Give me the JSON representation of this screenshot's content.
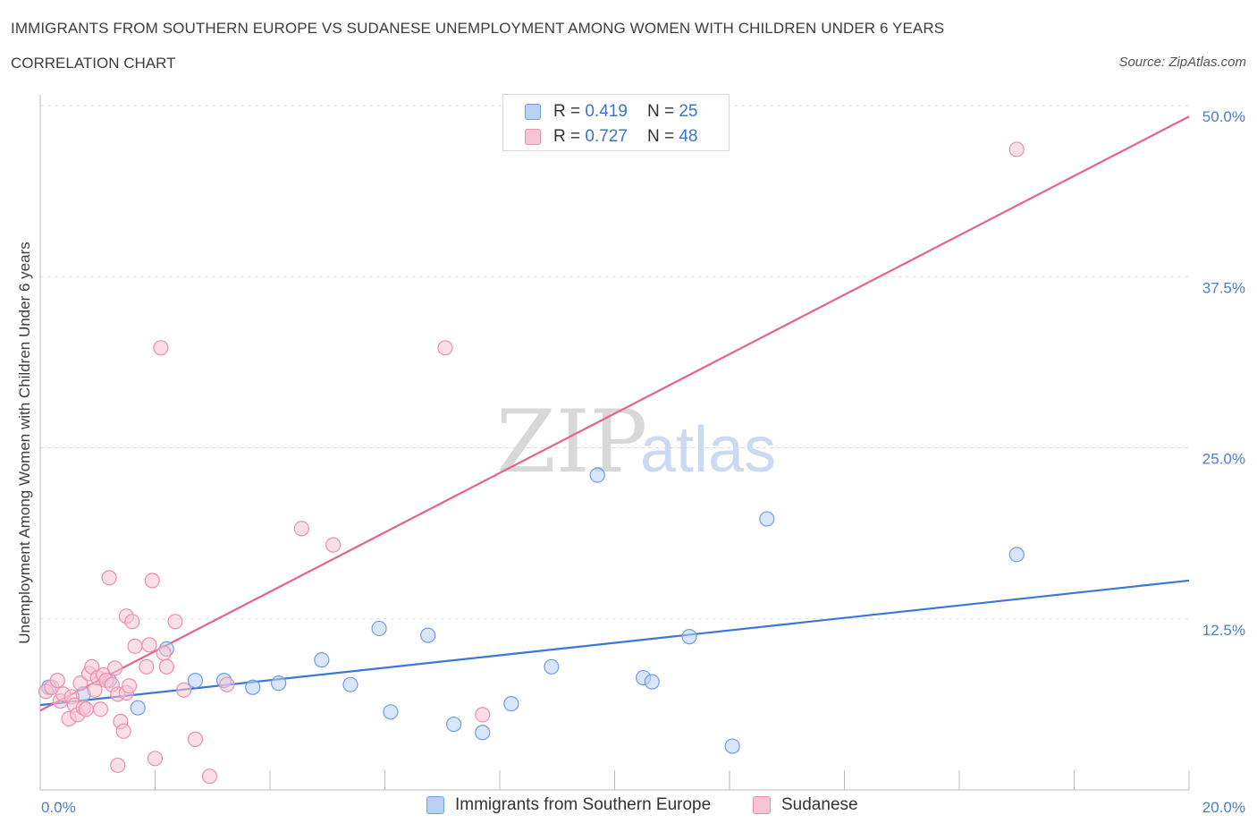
{
  "title": "IMMIGRANTS FROM SOUTHERN EUROPE VS SUDANESE UNEMPLOYMENT AMONG WOMEN WITH CHILDREN UNDER 6 YEARS",
  "subtitle": "CORRELATION CHART",
  "source": "Source: ZipAtlas.com",
  "watermark": {
    "zip": "ZIP",
    "atlas": "atlas"
  },
  "legend_top": [
    {
      "r_label": "R =",
      "r_value": "0.419",
      "n_label": "N =",
      "n_value": "25"
    },
    {
      "r_label": "R =",
      "r_value": "0.727",
      "n_label": "N =",
      "n_value": "48"
    }
  ],
  "legend_bottom": [
    "Immigrants from Southern Europe",
    "Sudanese"
  ],
  "colors": {
    "blue_fill": "#b9d1f5",
    "blue_stroke": "#6f9ee0",
    "blue_line": "#3b77d4",
    "pink_fill": "#f7c4d3",
    "pink_stroke": "#eb8fac",
    "pink_line": "#e5648e",
    "grid": "#dcdcdc",
    "axis_text": "#4a7fd1"
  },
  "chart_data": {
    "type": "scatter",
    "title": "IMMIGRANTS FROM SOUTHERN EUROPE VS SUDANESE UNEMPLOYMENT AMONG WOMEN WITH CHILDREN UNDER 6 YEARS",
    "xlabel": "",
    "ylabel": "Unemployment Among Women with Children Under 6 years",
    "xlim": [
      0,
      20
    ],
    "ylim": [
      0,
      50
    ],
    "x_tick_labels": [
      "0.0%",
      "20.0%"
    ],
    "y_tick_labels": [
      "12.5%",
      "25.0%",
      "37.5%",
      "50.0%"
    ],
    "y_tick_values": [
      12.5,
      25.0,
      37.5,
      50.0
    ],
    "grid": "horizontal dashed",
    "legend": "top-center and bottom",
    "series": [
      {
        "name": "Immigrants from Southern Europe",
        "color": "#b9d1f5",
        "points": [
          [
            0.15,
            7.5
          ],
          [
            0.75,
            7.0
          ],
          [
            1.2,
            8.0
          ],
          [
            1.7,
            6.0
          ],
          [
            2.2,
            10.3
          ],
          [
            2.7,
            8.0
          ],
          [
            3.2,
            8.0
          ],
          [
            3.7,
            7.5
          ],
          [
            4.15,
            7.8
          ],
          [
            4.9,
            9.5
          ],
          [
            5.4,
            7.7
          ],
          [
            5.9,
            11.8
          ],
          [
            6.1,
            5.7
          ],
          [
            6.75,
            11.3
          ],
          [
            7.2,
            4.8
          ],
          [
            7.7,
            4.2
          ],
          [
            8.2,
            6.3
          ],
          [
            8.9,
            9.0
          ],
          [
            9.7,
            23.0
          ],
          [
            10.5,
            8.2
          ],
          [
            10.65,
            7.9
          ],
          [
            11.3,
            11.2
          ],
          [
            12.05,
            3.2
          ],
          [
            12.65,
            19.8
          ],
          [
            17.0,
            17.2
          ]
        ],
        "trend": [
          [
            0,
            6.2
          ],
          [
            20,
            15.3
          ]
        ]
      },
      {
        "name": "Sudanese",
        "color": "#f7c4d3",
        "points": [
          [
            0.1,
            7.2
          ],
          [
            0.2,
            7.5
          ],
          [
            0.3,
            8.0
          ],
          [
            0.35,
            6.5
          ],
          [
            0.4,
            7.0
          ],
          [
            0.5,
            5.2
          ],
          [
            0.55,
            6.8
          ],
          [
            0.6,
            6.2
          ],
          [
            0.65,
            5.5
          ],
          [
            0.7,
            7.8
          ],
          [
            0.75,
            6.0
          ],
          [
            0.8,
            5.9
          ],
          [
            0.85,
            8.5
          ],
          [
            0.9,
            9.0
          ],
          [
            0.95,
            7.3
          ],
          [
            1.0,
            8.2
          ],
          [
            1.05,
            5.9
          ],
          [
            1.1,
            8.4
          ],
          [
            1.15,
            8.0
          ],
          [
            1.2,
            15.5
          ],
          [
            1.25,
            7.7
          ],
          [
            1.3,
            8.9
          ],
          [
            1.35,
            1.8
          ],
          [
            1.35,
            7.0
          ],
          [
            1.4,
            5.0
          ],
          [
            1.45,
            4.3
          ],
          [
            1.5,
            7.1
          ],
          [
            1.5,
            12.7
          ],
          [
            1.55,
            7.6
          ],
          [
            1.6,
            12.3
          ],
          [
            1.65,
            10.5
          ],
          [
            1.85,
            9.0
          ],
          [
            1.9,
            10.6
          ],
          [
            1.95,
            15.3
          ],
          [
            2.0,
            2.3
          ],
          [
            2.1,
            32.3
          ],
          [
            2.15,
            10.0
          ],
          [
            2.2,
            9.0
          ],
          [
            2.35,
            12.3
          ],
          [
            2.5,
            7.3
          ],
          [
            2.7,
            3.7
          ],
          [
            2.95,
            1.0
          ],
          [
            3.25,
            7.7
          ],
          [
            4.55,
            19.1
          ],
          [
            5.1,
            17.9
          ],
          [
            7.05,
            32.3
          ],
          [
            7.7,
            5.5
          ],
          [
            17.0,
            46.8
          ]
        ],
        "trend": [
          [
            0,
            5.8
          ],
          [
            20,
            49.2
          ]
        ]
      }
    ]
  }
}
